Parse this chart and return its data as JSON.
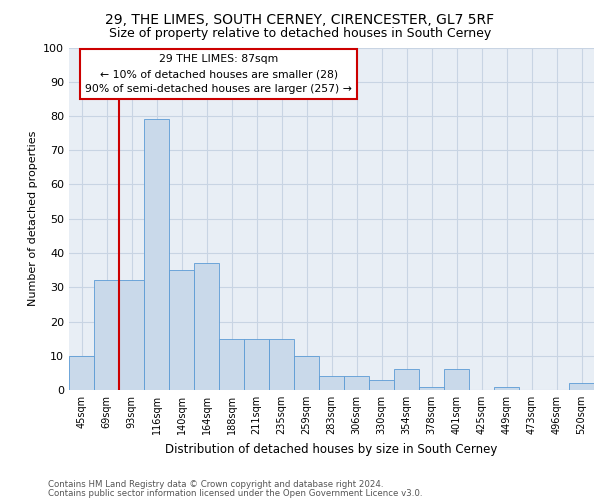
{
  "title1": "29, THE LIMES, SOUTH CERNEY, CIRENCESTER, GL7 5RF",
  "title2": "Size of property relative to detached houses in South Cerney",
  "xlabel": "Distribution of detached houses by size in South Cerney",
  "ylabel": "Number of detached properties",
  "categories": [
    "45sqm",
    "69sqm",
    "93sqm",
    "116sqm",
    "140sqm",
    "164sqm",
    "188sqm",
    "211sqm",
    "235sqm",
    "259sqm",
    "283sqm",
    "306sqm",
    "330sqm",
    "354sqm",
    "378sqm",
    "401sqm",
    "425sqm",
    "449sqm",
    "473sqm",
    "496sqm",
    "520sqm"
  ],
  "values": [
    10,
    32,
    32,
    79,
    35,
    37,
    15,
    15,
    15,
    10,
    4,
    4,
    3,
    6,
    1,
    6,
    0,
    1,
    0,
    0,
    2
  ],
  "bar_color": "#c9d9ea",
  "bar_edge_color": "#5b9bd5",
  "vline_x": 2.0,
  "vline_color": "#cc0000",
  "annotation_text": "29 THE LIMES: 87sqm\n← 10% of detached houses are smaller (28)\n90% of semi-detached houses are larger (257) →",
  "annotation_box_color": "#ffffff",
  "annotation_box_edge": "#cc0000",
  "ylim": [
    0,
    100
  ],
  "yticks": [
    0,
    10,
    20,
    30,
    40,
    50,
    60,
    70,
    80,
    90,
    100
  ],
  "grid_color": "#c8d4e3",
  "bg_color": "#e8eef5",
  "footer1": "Contains HM Land Registry data © Crown copyright and database right 2024.",
  "footer2": "Contains public sector information licensed under the Open Government Licence v3.0."
}
